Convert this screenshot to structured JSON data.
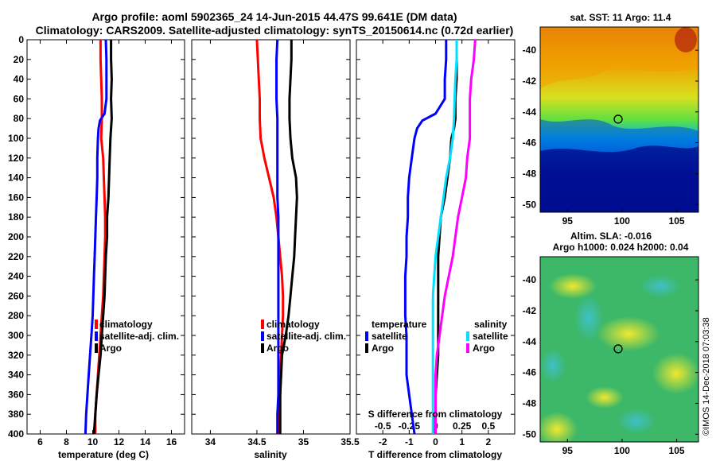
{
  "titles": {
    "line1": "Argo profile: aoml 5902365_24 14-Jun-2015 44.47S 99.641E (DM data)",
    "line2": "Climatology: CARS2009. Satellite-adjusted climatology: synTS_20150614.nc (0.72d earlier)"
  },
  "colors": {
    "climatology": "#ff0000",
    "satellite": "#0000ff",
    "argo": "#000000",
    "satellite_s": "#00e0ff",
    "argo_s": "#ff00ff"
  },
  "chart_data": [
    {
      "id": "temperature",
      "type": "line",
      "xlabel": "temperature (deg C)",
      "xlim": [
        5,
        17
      ],
      "xticks": [
        6,
        8,
        10,
        12,
        14,
        16
      ],
      "ylim": [
        0,
        400
      ],
      "yticks": [
        0,
        20,
        40,
        60,
        80,
        100,
        120,
        140,
        160,
        180,
        200,
        220,
        240,
        260,
        280,
        300,
        320,
        340,
        360,
        380,
        400
      ],
      "legend": [
        "climatology",
        "satellite-adj. clim.",
        "Argo"
      ],
      "series": [
        {
          "name": "climatology",
          "color": "red",
          "points": [
            [
              10.6,
              0
            ],
            [
              10.6,
              20
            ],
            [
              10.65,
              40
            ],
            [
              10.7,
              60
            ],
            [
              10.7,
              80
            ],
            [
              10.65,
              100
            ],
            [
              10.8,
              120
            ],
            [
              10.85,
              140
            ],
            [
              10.9,
              160
            ],
            [
              10.95,
              180
            ],
            [
              10.95,
              200
            ],
            [
              10.9,
              220
            ],
            [
              10.85,
              240
            ],
            [
              10.8,
              260
            ],
            [
              10.7,
              280
            ],
            [
              10.6,
              300
            ],
            [
              10.5,
              320
            ],
            [
              10.4,
              340
            ],
            [
              10.3,
              360
            ],
            [
              10.2,
              380
            ],
            [
              10.2,
              400
            ]
          ]
        },
        {
          "name": "satellite-adj. clim.",
          "color": "blue",
          "points": [
            [
              11.0,
              0
            ],
            [
              11.05,
              20
            ],
            [
              11.05,
              40
            ],
            [
              11.05,
              60
            ],
            [
              10.9,
              75
            ],
            [
              10.55,
              82
            ],
            [
              10.45,
              90
            ],
            [
              10.4,
              100
            ],
            [
              10.35,
              120
            ],
            [
              10.35,
              140
            ],
            [
              10.3,
              160
            ],
            [
              10.25,
              180
            ],
            [
              10.2,
              200
            ],
            [
              10.15,
              220
            ],
            [
              10.1,
              240
            ],
            [
              10.05,
              260
            ],
            [
              10.0,
              280
            ],
            [
              9.9,
              300
            ],
            [
              9.8,
              320
            ],
            [
              9.7,
              340
            ],
            [
              9.6,
              360
            ],
            [
              9.5,
              380
            ],
            [
              9.45,
              400
            ]
          ]
        },
        {
          "name": "Argo",
          "color": "black",
          "points": [
            [
              11.4,
              0
            ],
            [
              11.4,
              20
            ],
            [
              11.45,
              40
            ],
            [
              11.4,
              60
            ],
            [
              11.45,
              80
            ],
            [
              11.4,
              90
            ],
            [
              11.35,
              100
            ],
            [
              11.3,
              120
            ],
            [
              11.25,
              140
            ],
            [
              11.2,
              160
            ],
            [
              11.1,
              180
            ],
            [
              11.1,
              200
            ],
            [
              11.0,
              220
            ],
            [
              10.95,
              240
            ],
            [
              10.9,
              260
            ],
            [
              10.8,
              280
            ],
            [
              10.7,
              300
            ],
            [
              10.6,
              320
            ],
            [
              10.45,
              340
            ],
            [
              10.3,
              360
            ],
            [
              10.2,
              380
            ],
            [
              10.1,
              400
            ]
          ]
        }
      ]
    },
    {
      "id": "salinity",
      "type": "line",
      "xlabel": "salinity",
      "xlim": [
        33.8,
        35.5
      ],
      "xticks": [
        34,
        34.5,
        35,
        35.5
      ],
      "xticklabels": [
        "34",
        "34.5",
        "35",
        "35.5"
      ],
      "ylim": [
        0,
        400
      ],
      "legend": [
        "climatology",
        "satellite-adj. clim.",
        "Argo"
      ],
      "series": [
        {
          "name": "climatology",
          "color": "red",
          "points": [
            [
              34.5,
              0
            ],
            [
              34.51,
              20
            ],
            [
              34.52,
              40
            ],
            [
              34.53,
              60
            ],
            [
              34.53,
              80
            ],
            [
              34.54,
              100
            ],
            [
              34.58,
              120
            ],
            [
              34.63,
              140
            ],
            [
              34.68,
              160
            ],
            [
              34.71,
              180
            ],
            [
              34.73,
              200
            ],
            [
              34.75,
              220
            ],
            [
              34.77,
              240
            ],
            [
              34.78,
              260
            ],
            [
              34.78,
              280
            ],
            [
              34.77,
              300
            ],
            [
              34.76,
              320
            ],
            [
              34.75,
              340
            ],
            [
              34.75,
              360
            ],
            [
              34.74,
              380
            ],
            [
              34.74,
              400
            ]
          ]
        },
        {
          "name": "satellite-adj. clim.",
          "color": "blue",
          "points": [
            [
              34.72,
              0
            ],
            [
              34.71,
              20
            ],
            [
              34.71,
              40
            ],
            [
              34.71,
              60
            ],
            [
              34.72,
              80
            ],
            [
              34.72,
              100
            ],
            [
              34.72,
              120
            ],
            [
              34.72,
              140
            ],
            [
              34.72,
              160
            ],
            [
              34.73,
              180
            ],
            [
              34.73,
              200
            ],
            [
              34.73,
              220
            ],
            [
              34.73,
              240
            ],
            [
              34.73,
              260
            ],
            [
              34.73,
              280
            ],
            [
              34.73,
              300
            ],
            [
              34.73,
              320
            ],
            [
              34.73,
              340
            ],
            [
              34.73,
              360
            ],
            [
              34.72,
              380
            ],
            [
              34.72,
              400
            ]
          ]
        },
        {
          "name": "Argo",
          "color": "black",
          "points": [
            [
              34.87,
              0
            ],
            [
              34.87,
              20
            ],
            [
              34.86,
              40
            ],
            [
              34.85,
              60
            ],
            [
              34.85,
              80
            ],
            [
              34.86,
              100
            ],
            [
              34.88,
              120
            ],
            [
              34.92,
              140
            ],
            [
              34.93,
              160
            ],
            [
              34.92,
              180
            ],
            [
              34.91,
              200
            ],
            [
              34.9,
              220
            ],
            [
              34.88,
              240
            ],
            [
              34.86,
              260
            ],
            [
              34.84,
              280
            ],
            [
              34.81,
              300
            ],
            [
              34.77,
              320
            ],
            [
              34.76,
              340
            ],
            [
              34.75,
              360
            ],
            [
              34.75,
              380
            ],
            [
              34.75,
              400
            ]
          ]
        }
      ]
    },
    {
      "id": "difference",
      "type": "line",
      "xlabel": "T difference from climatology",
      "xlabel2": "S difference from climatology",
      "xlim": [
        -3,
        3
      ],
      "xticks": [
        -2,
        -1,
        0,
        1,
        2
      ],
      "xticklabels": [
        "-2",
        "-1",
        "0",
        "1",
        "2"
      ],
      "sticks": [
        -2,
        -1,
        0,
        1,
        2
      ],
      "sticklabels": [
        "-0.5",
        "-0.25",
        "0",
        "0.25",
        "0.5"
      ],
      "ylim": [
        0,
        400
      ],
      "legend_temperature": {
        "title": "temperature",
        "items": [
          "satellite",
          "Argo"
        ]
      },
      "legend_salinity": {
        "title": "salinity",
        "items": [
          "satellite",
          "Argo"
        ]
      },
      "series": [
        {
          "name": "T satellite",
          "color": "blue",
          "points": [
            [
              0.4,
              0
            ],
            [
              0.4,
              20
            ],
            [
              0.35,
              40
            ],
            [
              0.35,
              60
            ],
            [
              0.0,
              75
            ],
            [
              -0.5,
              82
            ],
            [
              -0.7,
              90
            ],
            [
              -0.8,
              100
            ],
            [
              -0.9,
              120
            ],
            [
              -1.0,
              140
            ],
            [
              -1.05,
              160
            ],
            [
              -1.05,
              180
            ],
            [
              -1.1,
              200
            ],
            [
              -1.1,
              220
            ],
            [
              -1.15,
              240
            ],
            [
              -1.15,
              260
            ],
            [
              -1.15,
              280
            ],
            [
              -1.1,
              300
            ],
            [
              -1.1,
              320
            ],
            [
              -1.1,
              340
            ],
            [
              -1.0,
              360
            ],
            [
              -0.9,
              380
            ],
            [
              -0.8,
              400
            ]
          ]
        },
        {
          "name": "T Argo",
          "color": "black",
          "points": [
            [
              0.8,
              0
            ],
            [
              0.8,
              20
            ],
            [
              0.8,
              40
            ],
            [
              0.75,
              60
            ],
            [
              0.75,
              80
            ],
            [
              0.7,
              90
            ],
            [
              0.6,
              100
            ],
            [
              0.55,
              120
            ],
            [
              0.45,
              140
            ],
            [
              0.35,
              160
            ],
            [
              0.2,
              180
            ],
            [
              0.15,
              200
            ],
            [
              0.1,
              220
            ],
            [
              0.1,
              240
            ],
            [
              0.1,
              260
            ],
            [
              0.1,
              280
            ],
            [
              0.1,
              300
            ],
            [
              0.1,
              320
            ],
            [
              0.05,
              340
            ],
            [
              0.0,
              360
            ],
            [
              0.0,
              380
            ],
            [
              -0.1,
              400
            ]
          ]
        },
        {
          "name": "S satellite",
          "color": "cyan",
          "points": [
            [
              0.8,
              0
            ],
            [
              0.8,
              20
            ],
            [
              0.75,
              40
            ],
            [
              0.72,
              60
            ],
            [
              0.7,
              80
            ],
            [
              0.65,
              100
            ],
            [
              0.55,
              120
            ],
            [
              0.4,
              140
            ],
            [
              0.3,
              160
            ],
            [
              0.2,
              180
            ],
            [
              0.1,
              200
            ],
            [
              0.0,
              220
            ],
            [
              -0.05,
              240
            ],
            [
              -0.1,
              260
            ],
            [
              -0.1,
              280
            ],
            [
              -0.1,
              300
            ],
            [
              -0.1,
              320
            ],
            [
              -0.1,
              340
            ],
            [
              -0.1,
              360
            ],
            [
              -0.1,
              380
            ],
            [
              -0.1,
              400
            ]
          ]
        },
        {
          "name": "S Argo",
          "color": "magenta",
          "points": [
            [
              1.5,
              0
            ],
            [
              1.45,
              20
            ],
            [
              1.35,
              40
            ],
            [
              1.3,
              60
            ],
            [
              1.3,
              80
            ],
            [
              1.3,
              100
            ],
            [
              1.2,
              120
            ],
            [
              1.15,
              140
            ],
            [
              1.0,
              160
            ],
            [
              0.85,
              180
            ],
            [
              0.75,
              200
            ],
            [
              0.65,
              220
            ],
            [
              0.5,
              240
            ],
            [
              0.35,
              260
            ],
            [
              0.25,
              280
            ],
            [
              0.15,
              300
            ],
            [
              0.05,
              320
            ],
            [
              0.0,
              340
            ],
            [
              0.0,
              360
            ],
            [
              0.0,
              380
            ],
            [
              0.0,
              400
            ]
          ]
        }
      ]
    },
    {
      "id": "sst_map",
      "type": "heatmap",
      "title": "sat. SST: 11 Argo: 11.4",
      "xlim": [
        92.5,
        107
      ],
      "ylim": [
        -50.5,
        -38.5
      ],
      "xticks": [
        95,
        100,
        105
      ],
      "yticks": [
        -40,
        -42,
        -44,
        -46,
        -48,
        -50
      ],
      "marker": [
        99.641,
        -44.47
      ]
    },
    {
      "id": "sla_map",
      "type": "heatmap",
      "title": "Altim. SLA: -0.016",
      "subtitle": "Argo h1000: 0.024 h2000: 0.04",
      "xlim": [
        92.5,
        107
      ],
      "ylim": [
        -50.5,
        -38.5
      ],
      "xticks": [
        95,
        100,
        105
      ],
      "yticks": [
        -40,
        -42,
        -44,
        -46,
        -48,
        -50
      ],
      "marker": [
        99.641,
        -44.47
      ]
    }
  ],
  "credit": "©IMOS 14-Dec-2018 07:03:38"
}
